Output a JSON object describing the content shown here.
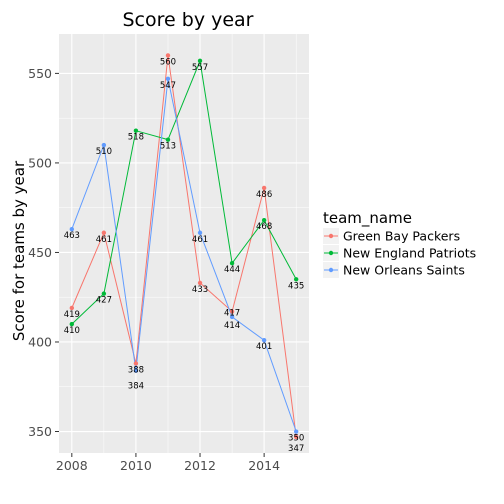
{
  "chart_data": {
    "type": "line",
    "title": "Score by year",
    "xlabel": "",
    "ylabel": "Score for teams by year",
    "x": [
      2008,
      2009,
      2010,
      2011,
      2012,
      2013,
      2014,
      2015
    ],
    "xlim": [
      2007.6,
      2015.4
    ],
    "ylim": [
      338,
      572
    ],
    "x_ticks": [
      2008,
      2010,
      2012,
      2014
    ],
    "y_ticks": [
      350,
      400,
      450,
      500,
      550
    ],
    "grid": true,
    "legend_title": "team_name",
    "legend_position": "right",
    "series": [
      {
        "name": "Green Bay Packers",
        "color": "#F8766D",
        "values": [
          419,
          461,
          388,
          560,
          433,
          417,
          486,
          347
        ]
      },
      {
        "name": "New England Patriots",
        "color": "#00BA38",
        "values": [
          410,
          427,
          518,
          513,
          557,
          444,
          468,
          435
        ]
      },
      {
        "name": "New Orleans Saints",
        "color": "#619CFF",
        "values": [
          463,
          510,
          384,
          547,
          461,
          414,
          401,
          350
        ]
      }
    ],
    "point_labels": [
      {
        "x": 2008,
        "label": "463",
        "dy": 9
      },
      {
        "x": 2008,
        "label": "419",
        "dy": 9
      },
      {
        "x": 2008,
        "label": "410",
        "dy": 9
      },
      {
        "x": 2009,
        "label": "510",
        "dy": 9
      },
      {
        "x": 2009,
        "label": "461",
        "dy": 9
      },
      {
        "x": 2009,
        "label": "427",
        "dy": 9
      },
      {
        "x": 2010,
        "label": "518",
        "dy": 9
      },
      {
        "x": 2010,
        "label": "388",
        "dy": 9
      },
      {
        "x": 2010,
        "label": "384",
        "dy": 18
      },
      {
        "x": 2011,
        "label": "560",
        "dy": 9
      },
      {
        "x": 2011,
        "label": "547",
        "dy": 9
      },
      {
        "x": 2011,
        "label": "513",
        "dy": 9
      },
      {
        "x": 2012,
        "label": "557",
        "dy": 9
      },
      {
        "x": 2012,
        "label": "461",
        "dy": 9
      },
      {
        "x": 2012,
        "label": "433",
        "dy": 9
      },
      {
        "x": 2013,
        "label": "444",
        "dy": 9
      },
      {
        "x": 2013,
        "label": "417",
        "dy": 4
      },
      {
        "x": 2013,
        "label": "414",
        "dy": 11
      },
      {
        "x": 2014,
        "label": "486",
        "dy": 9
      },
      {
        "x": 2014,
        "label": "468",
        "dy": 9
      },
      {
        "x": 2014,
        "label": "401",
        "dy": 9
      },
      {
        "x": 2015,
        "label": "435",
        "dy": 9
      },
      {
        "x": 2015,
        "label": "350",
        "dy": 9
      },
      {
        "x": 2015,
        "label": "347",
        "dy": 14
      }
    ]
  }
}
